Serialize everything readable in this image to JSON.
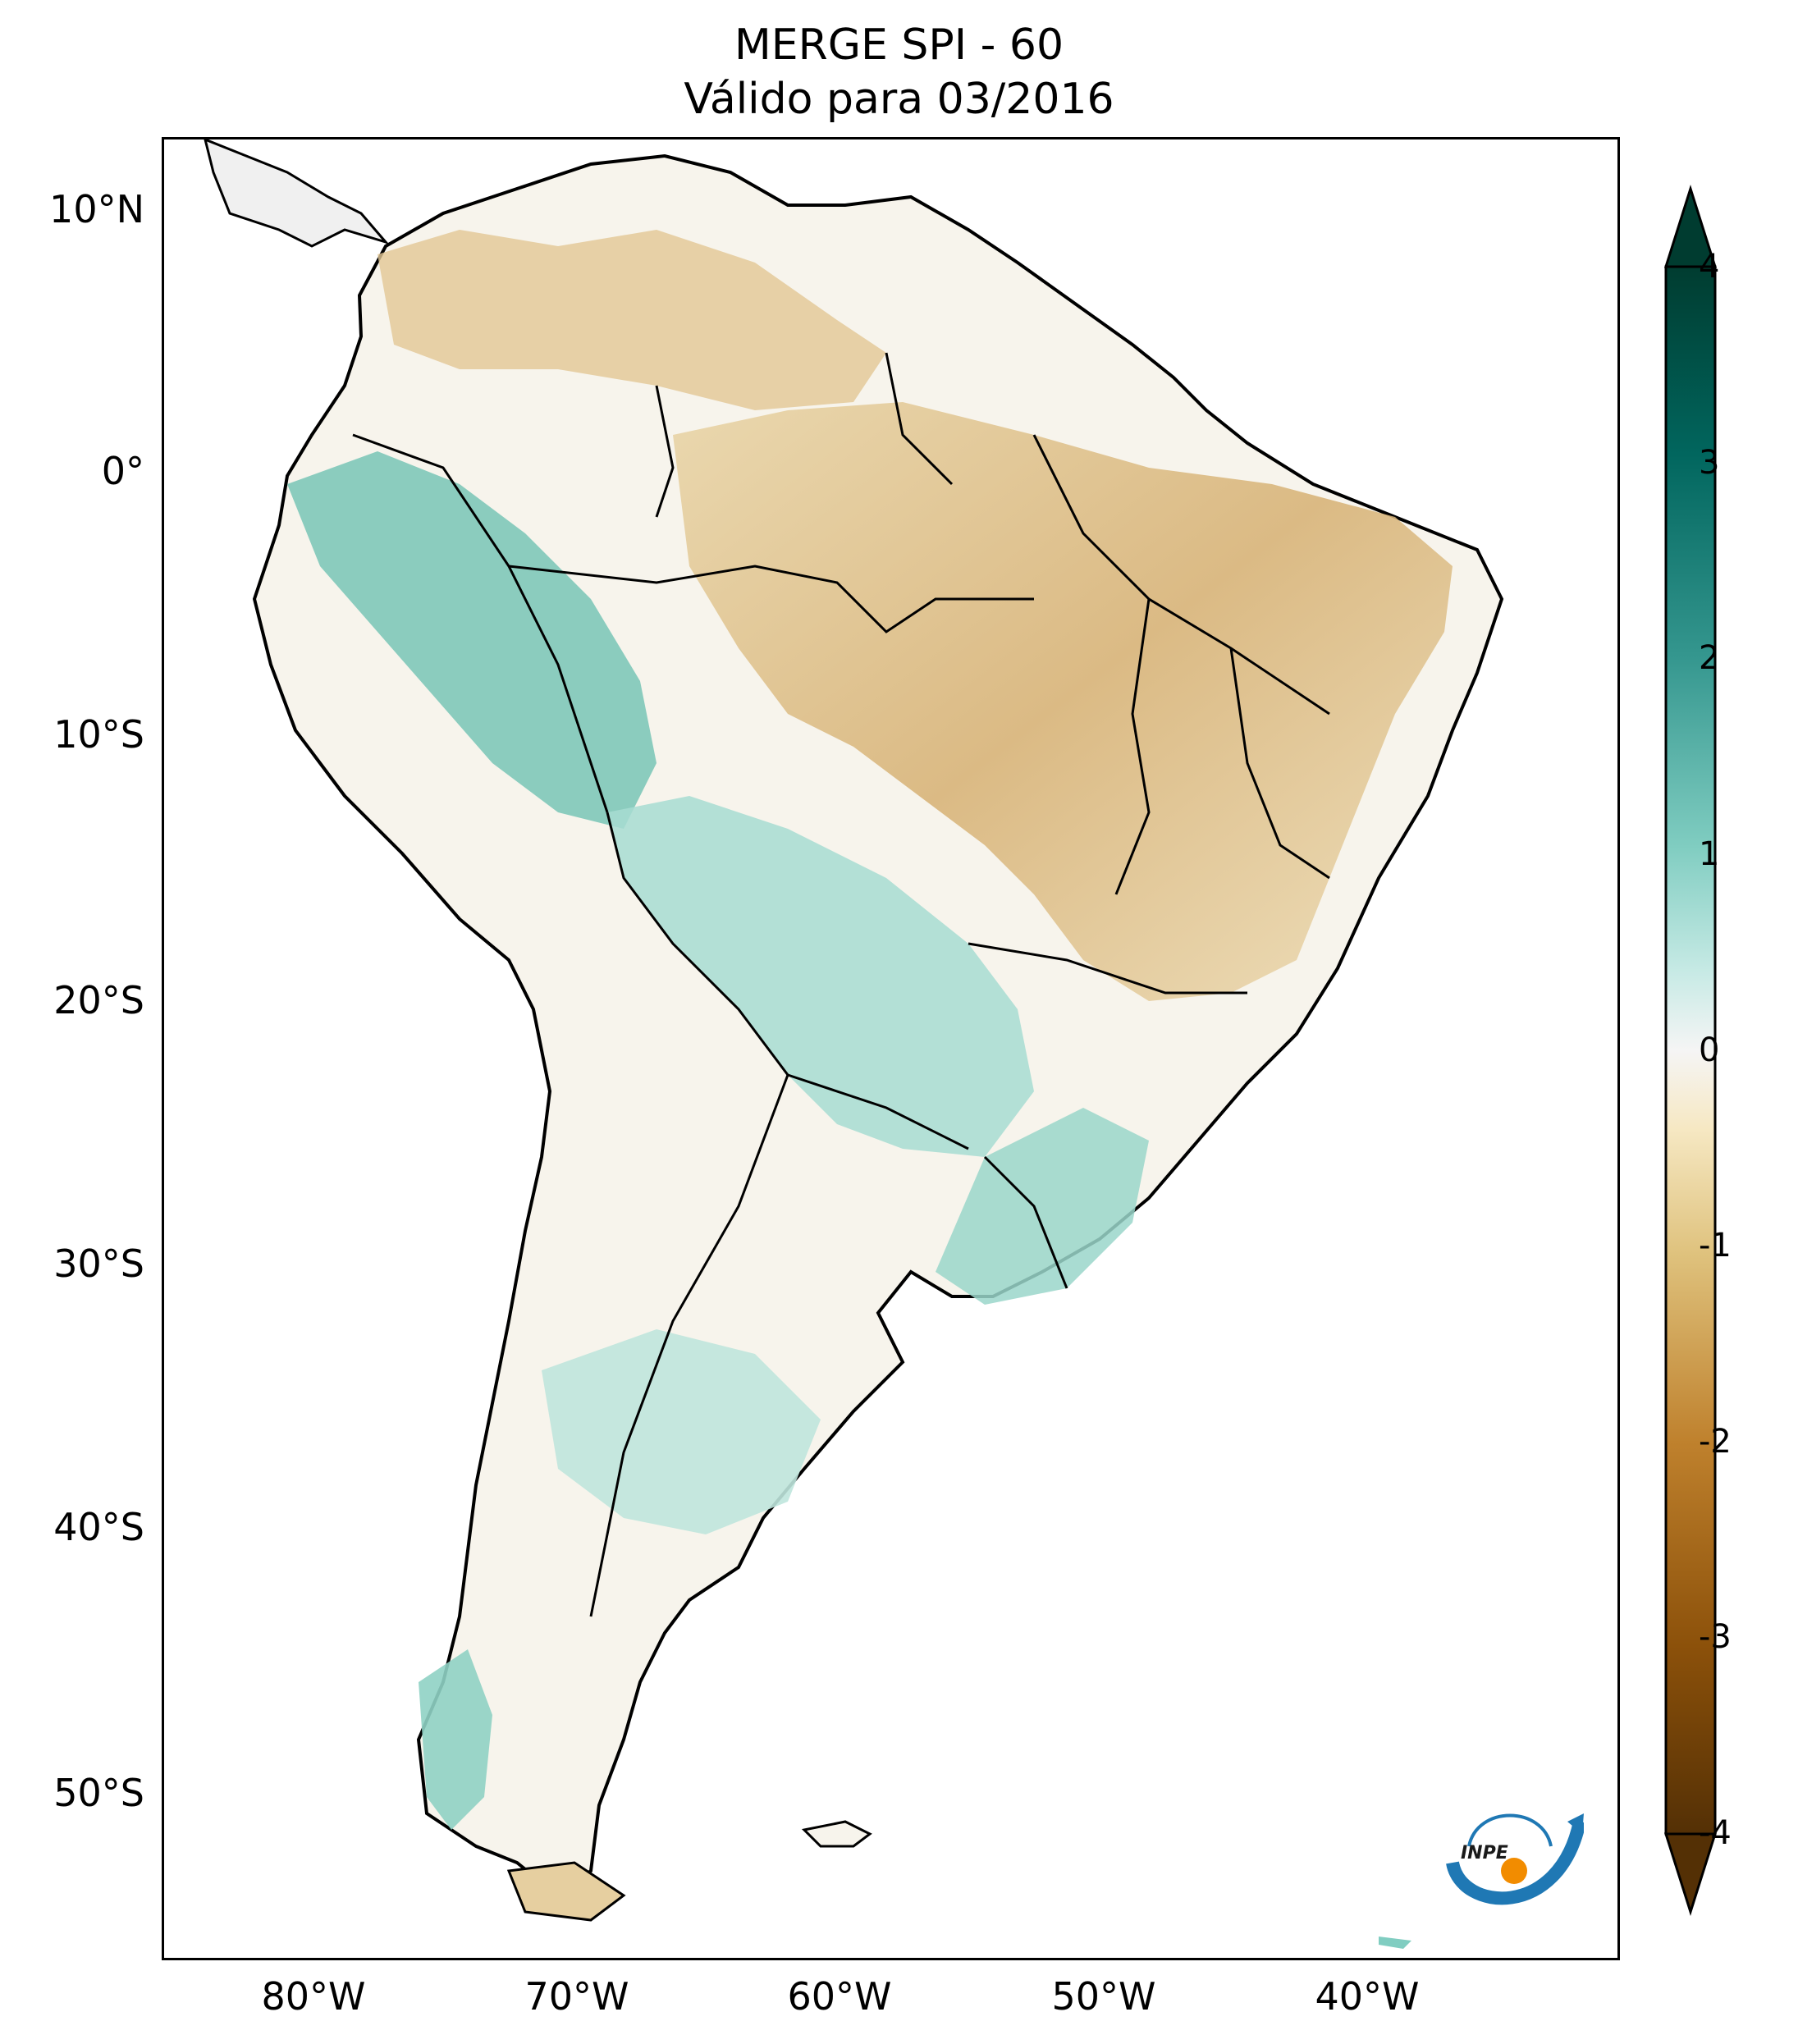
{
  "title": {
    "line1": "MERGE   SPI - 60",
    "line2": "Válido para 03/2016"
  },
  "map": {
    "lat_ticks": [
      "10°N",
      "0°",
      "10°S",
      "20°S",
      "30°S",
      "40°S",
      "50°S"
    ],
    "lon_ticks": [
      "80°W",
      "70°W",
      "60°W",
      "50°W",
      "40°W"
    ]
  },
  "colorbar": {
    "ticks": [
      "4",
      "3",
      "2",
      "1",
      "0",
      "-1",
      "-2",
      "-3",
      "-4"
    ],
    "colors": {
      "dry_extreme": "#543005",
      "dry_strong": "#8c510a",
      "dry_moderate": "#bf812d",
      "dry_mild": "#dfc27d",
      "dry_slight": "#f6e8c3",
      "neutral": "#f5f5f5",
      "wet_slight": "#c7eae5",
      "wet_mild": "#80cdc1",
      "wet_moderate": "#35978f",
      "wet_strong": "#01665e",
      "wet_extreme": "#003c30"
    }
  },
  "logo": {
    "text": "INPE",
    "accent_blue": "#1f78b4",
    "accent_orange": "#f28c00"
  }
}
